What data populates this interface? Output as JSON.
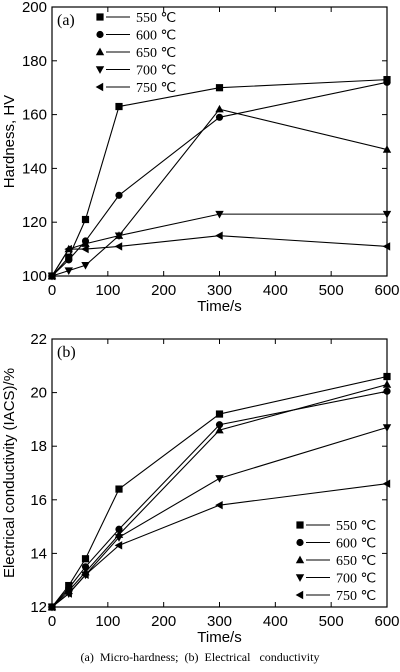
{
  "caption": "(a)  Micro-hardness;  (b)  Electrical   conductivity",
  "chart_data": [
    {
      "type": "line",
      "panel_label": "(a)",
      "xlabel": "Time/s",
      "ylabel": "Hardness, HV",
      "xlim": [
        0,
        600
      ],
      "ylim": [
        100,
        200
      ],
      "xticks": [
        0,
        100,
        200,
        300,
        400,
        500,
        600
      ],
      "yticks": [
        100,
        120,
        140,
        160,
        180,
        200
      ],
      "x": [
        0,
        30,
        60,
        120,
        300,
        600
      ],
      "legend_position": "top-left",
      "series": [
        {
          "name": "550 ℃",
          "marker": "square",
          "values": [
            100,
            107,
            121,
            163,
            170,
            173
          ]
        },
        {
          "name": "600 ℃",
          "marker": "circle",
          "values": [
            100,
            106,
            113,
            130,
            159,
            172
          ]
        },
        {
          "name": "650 ℃",
          "marker": "triangle-up",
          "values": [
            100,
            110,
            112,
            115,
            162,
            147
          ]
        },
        {
          "name": "700 ℃",
          "marker": "triangle-down",
          "values": [
            100,
            102,
            104,
            115,
            123,
            123
          ]
        },
        {
          "name": "750 ℃",
          "marker": "triangle-left",
          "values": [
            100,
            110,
            110,
            111,
            115,
            111
          ]
        }
      ]
    },
    {
      "type": "line",
      "panel_label": "(b)",
      "xlabel": "Time/s",
      "ylabel": "Electrical conductivity (IACS)/%",
      "xlim": [
        0,
        600
      ],
      "ylim": [
        12,
        22
      ],
      "xticks": [
        0,
        100,
        200,
        300,
        400,
        500,
        600
      ],
      "yticks": [
        12,
        14,
        16,
        18,
        20,
        22
      ],
      "x": [
        0,
        30,
        60,
        120,
        300,
        600
      ],
      "legend_position": "bottom-right",
      "series": [
        {
          "name": "550 ℃",
          "marker": "square",
          "values": [
            12,
            12.8,
            13.8,
            16.4,
            19.2,
            20.6
          ]
        },
        {
          "name": "600 ℃",
          "marker": "circle",
          "values": [
            12,
            12.7,
            13.5,
            14.9,
            18.8,
            20.05
          ]
        },
        {
          "name": "650 ℃",
          "marker": "triangle-up",
          "values": [
            12,
            12.6,
            13.3,
            14.7,
            18.6,
            20.3
          ]
        },
        {
          "name": "700 ℃",
          "marker": "triangle-down",
          "values": [
            12,
            12.5,
            13.2,
            14.6,
            16.8,
            18.7
          ]
        },
        {
          "name": "750 ℃",
          "marker": "triangle-left",
          "values": [
            12,
            12.5,
            13.2,
            14.3,
            15.8,
            16.6
          ]
        }
      ]
    }
  ]
}
